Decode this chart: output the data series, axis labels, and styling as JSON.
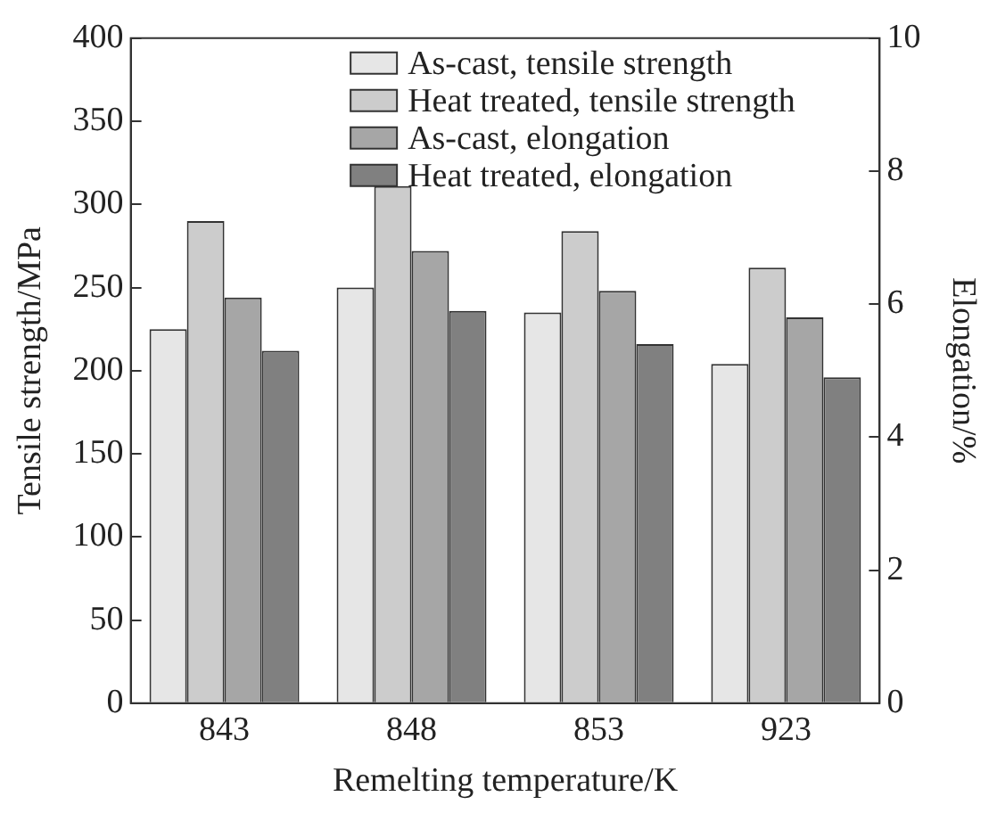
{
  "chart_data": {
    "type": "bar",
    "xlabel": "Remelting temperature/K",
    "ylabel": "Tensile strength/MPa",
    "y2label": "Elongation/%",
    "categories": [
      "843",
      "848",
      "853",
      "923"
    ],
    "series": [
      {
        "name": "As-cast, tensile strength",
        "color": "#e6e6e6",
        "values": [
          225,
          250,
          235,
          204
        ]
      },
      {
        "name": "Heat treated, tensile strength",
        "color": "#cccccc",
        "values": [
          290,
          311,
          284,
          262
        ]
      },
      {
        "name": "As-cast, elongation",
        "color": "#a6a6a6",
        "values": [
          6.1,
          6.8,
          6.2,
          5.8
        ],
        "axis": "y2"
      },
      {
        "name": "Heat treated, elongation",
        "color": "#808080",
        "values": [
          5.3,
          5.9,
          5.4,
          4.9
        ],
        "axis": "y2"
      }
    ],
    "ylim": [
      0,
      400
    ],
    "yticks": [
      0,
      50,
      100,
      150,
      200,
      250,
      300,
      350,
      400
    ],
    "y2lim": [
      0,
      10
    ],
    "y2ticks": [
      0,
      2,
      4,
      6,
      8,
      10
    ],
    "grid": false,
    "legend": "top"
  }
}
